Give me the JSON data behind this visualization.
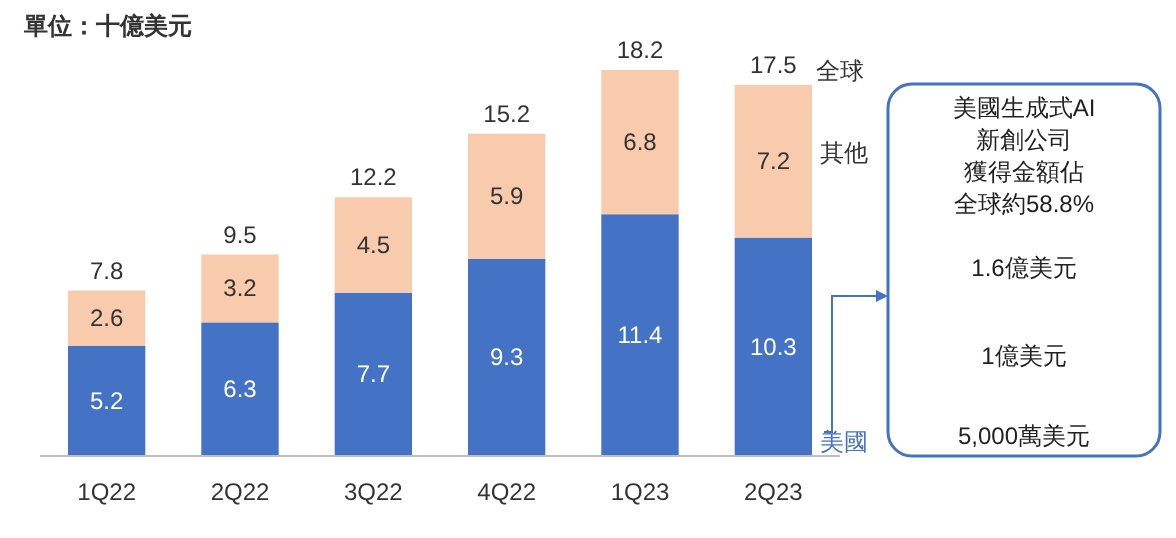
{
  "chart_data": {
    "type": "bar",
    "stacked": true,
    "subtitle": "單位：十億美元",
    "categories": [
      "1Q22",
      "2Q22",
      "3Q22",
      "4Q22",
      "1Q23",
      "2Q23"
    ],
    "series": [
      {
        "name": "美國",
        "color": "#4472c4",
        "values": [
          5.2,
          6.3,
          7.7,
          9.3,
          11.4,
          10.3
        ]
      },
      {
        "name": "其他",
        "color": "#f8cbad",
        "values": [
          2.6,
          3.2,
          4.5,
          5.9,
          6.8,
          7.2
        ]
      }
    ],
    "totals": [
      "7.8",
      "9.5",
      "12.2",
      "15.2",
      "18.2",
      "17.5"
    ],
    "data_labels": true,
    "annotations": [
      "全球",
      "美國生成式AI",
      "新創公司",
      "獲得金額佔",
      "全球約58.8%",
      "1.6億美元",
      "1億美元",
      "5,000萬美元"
    ]
  }
}
